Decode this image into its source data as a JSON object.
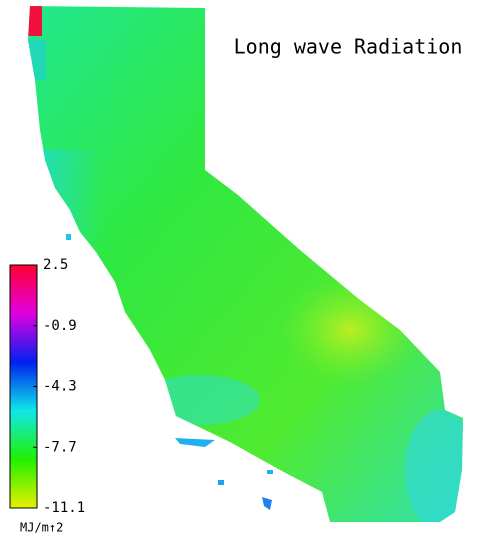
{
  "title": "Long wave Radiation",
  "colorbar": {
    "lim": [
      -11.1,
      2.5
    ],
    "ticks": [
      2.5,
      -0.9,
      -4.3,
      -7.7,
      -11.1
    ],
    "unit": "MJ/m↑2",
    "colormap": [
      "#e8f000",
      "#20f000",
      "#10e8e8",
      "#0020f0",
      "#e000e0",
      "#ff0030"
    ]
  }
}
